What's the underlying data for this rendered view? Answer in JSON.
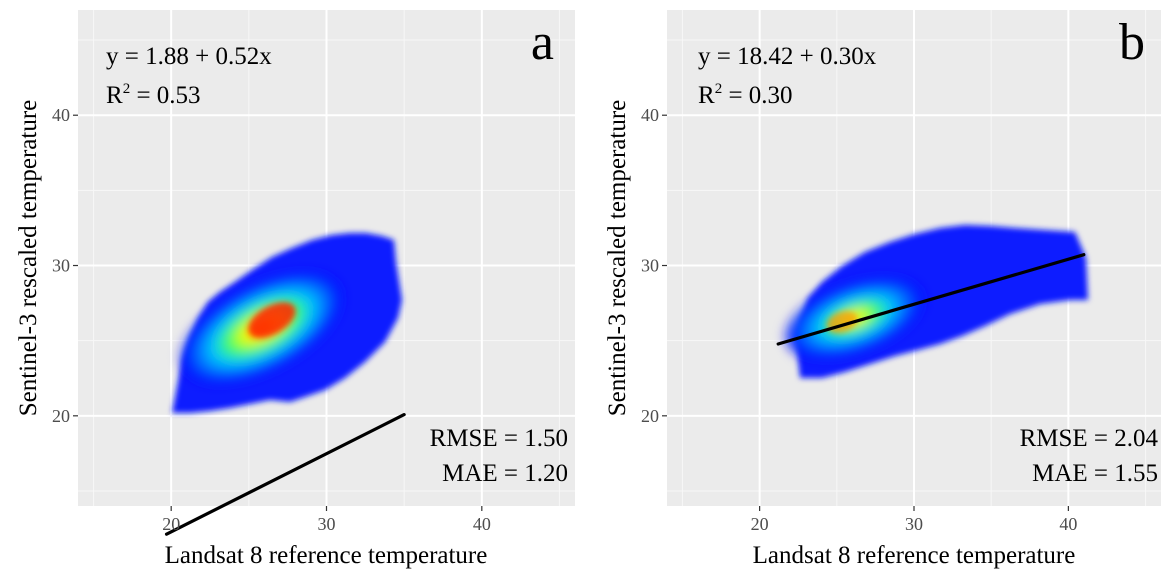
{
  "chart_data": [
    {
      "type": "scatter",
      "panel_label": "a",
      "xlabel": "Landsat 8 reference temperature",
      "ylabel": "Sentinel-3 rescaled temperature",
      "xlim": [
        14,
        46
      ],
      "ylim": [
        14,
        47
      ],
      "x_ticks": [
        20,
        30,
        40
      ],
      "y_ticks": [
        20,
        30,
        40
      ],
      "grid": true,
      "density_scatter": {
        "colormap": [
          "#0000ff",
          "#00bfff",
          "#00ff80",
          "#ffff00",
          "#ff0000"
        ],
        "centroid": [
          26.5,
          26.0
        ],
        "x_range": [
          19.7,
          35.0
        ],
        "y_range": [
          19.9,
          31.8
        ]
      },
      "regression_line": {
        "intercept": 1.88,
        "slope": 0.52,
        "x_range": [
          19.7,
          35.0
        ]
      },
      "annotations": {
        "equation": "y = 1.88 + 0.52x",
        "r2_prefix": "R",
        "r2_sup": "2",
        "r2_value": " = 0.53",
        "rmse": "RMSE = 1.50",
        "mae": "MAE = 1.20"
      }
    },
    {
      "type": "scatter",
      "panel_label": "b",
      "xlabel": "Landsat 8 reference temperature",
      "ylabel": "Sentinel-3 rescaled temperature",
      "xlim": [
        14,
        46
      ],
      "ylim": [
        14,
        47
      ],
      "x_ticks": [
        20,
        30,
        40
      ],
      "y_ticks": [
        20,
        30,
        40
      ],
      "grid": true,
      "density_scatter": {
        "colormap": [
          "#0000ff",
          "#00bfff",
          "#00ff80",
          "#ffff00",
          "#ff0000"
        ],
        "centroid": [
          25.0,
          25.8
        ],
        "x_range": [
          21.2,
          41.0
        ],
        "y_range": [
          21.8,
          32.4
        ]
      },
      "regression_line": {
        "intercept": 18.42,
        "slope": 0.3,
        "x_range": [
          21.2,
          41.0
        ]
      },
      "annotations": {
        "equation": "y = 18.42 + 0.30x",
        "r2_prefix": "R",
        "r2_sup": "2",
        "r2_value": " = 0.30",
        "rmse": "RMSE = 2.04",
        "mae": "MAE = 1.55"
      }
    }
  ]
}
